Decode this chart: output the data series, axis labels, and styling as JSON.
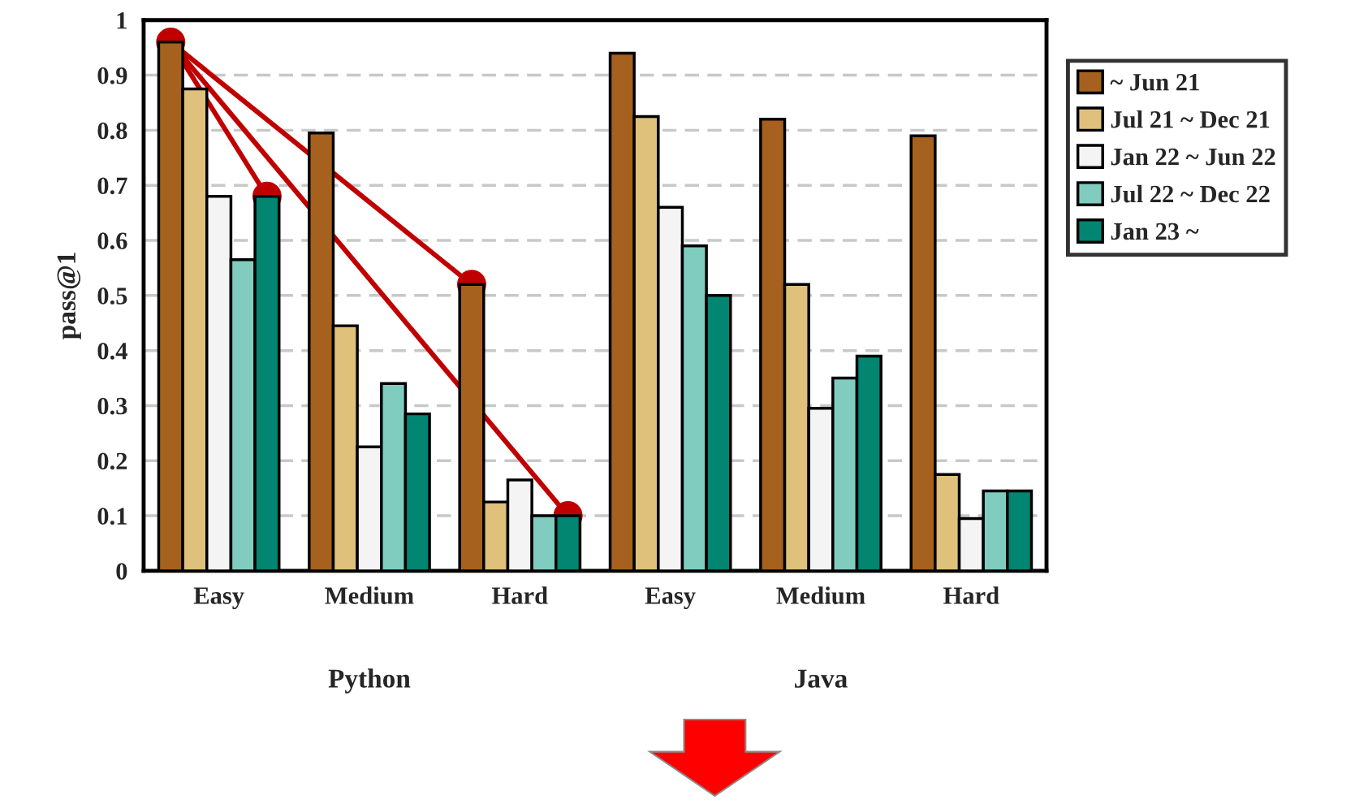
{
  "chart_data": {
    "type": "bar",
    "ylabel": "pass@1",
    "categories": [
      "Easy",
      "Medium",
      "Hard",
      "Easy",
      "Medium",
      "Hard"
    ],
    "series": [
      {
        "name": "~ Jun 21",
        "color": "#a5611d",
        "values": [
          0.96,
          0.795,
          0.52,
          0.94,
          0.82,
          0.79
        ]
      },
      {
        "name": "Jul 21 ~ Dec 21",
        "color": "#dfc17b",
        "values": [
          0.875,
          0.445,
          0.125,
          0.825,
          0.52,
          0.175
        ]
      },
      {
        "name": "Jan 22 ~ Jun 22",
        "color": "#f4f4f4",
        "values": [
          0.68,
          0.225,
          0.165,
          0.66,
          0.295,
          0.095
        ]
      },
      {
        "name": "Jul 22 ~ Dec 22",
        "color": "#80cdc0",
        "values": [
          0.565,
          0.34,
          0.1,
          0.59,
          0.35,
          0.145
        ]
      },
      {
        "name": "Jan 23 ~",
        "color": "#028571",
        "values": [
          0.68,
          0.285,
          0.1,
          0.5,
          0.39,
          0.145
        ]
      }
    ],
    "annotations": [
      "Python",
      "Java"
    ],
    "ylim": [
      0,
      1
    ],
    "yticks": [
      0,
      0.1,
      0.2,
      0.3,
      0.4,
      0.5,
      0.6,
      0.7,
      0.8,
      0.9,
      1
    ],
    "grid": "y",
    "legend": "right"
  }
}
